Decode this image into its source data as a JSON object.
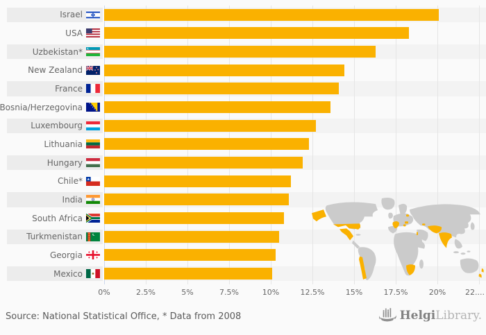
{
  "chart_data": {
    "type": "bar",
    "orientation": "horizontal",
    "categories": [
      "Israel",
      "USA",
      "Uzbekistan*",
      "New Zealand",
      "France",
      "Bosnia/Herzegovina",
      "Luxembourg",
      "Lithuania",
      "Hungary",
      "Chile*",
      "India",
      "South Africa",
      "Turkmenistan",
      "Georgia",
      "Mexico"
    ],
    "values": [
      20.1,
      18.3,
      16.3,
      14.4,
      14.1,
      13.6,
      12.7,
      12.3,
      11.9,
      11.2,
      11.1,
      10.8,
      10.5,
      10.3,
      10.1
    ],
    "flags": [
      "il",
      "us",
      "uz",
      "nz",
      "fr",
      "ba",
      "lu",
      "lt",
      "hu",
      "cl",
      "in",
      "za",
      "tm",
      "ge",
      "mx"
    ],
    "x_tick_labels": [
      "0%",
      "2.5%",
      "5%",
      "7.5%",
      "10%",
      "12.5%",
      "15%",
      "17.5%",
      "20%",
      "22...."
    ],
    "x_tick_values": [
      0,
      2.5,
      5,
      7.5,
      10,
      12.5,
      15,
      17.5,
      20,
      22.5
    ],
    "xlim": [
      0,
      22.9
    ],
    "unit": "%",
    "grid": true,
    "legend": false,
    "bar_color": "#FAB100",
    "map_watermark_highlighted": [
      "Israel",
      "USA",
      "Uzbekistan",
      "New Zealand",
      "France",
      "Bosnia/Herzegovina",
      "Luxembourg",
      "Lithuania",
      "Hungary",
      "Chile",
      "India",
      "South Africa",
      "Turkmenistan",
      "Georgia",
      "Mexico"
    ]
  },
  "colors": {
    "bar": "#FAB100",
    "axis_line": "#CCD6EB",
    "gridline": "#E5E5E5",
    "row_stripe_label": "#ECECEC",
    "row_stripe_plot": "#F3F3F3",
    "label_text": "#666666",
    "map_base": "#CBCBCB",
    "map_highlight": "#FAB100",
    "background": "#FAFAFA"
  },
  "footer": {
    "source_text": "Source: National Statistical Office, * Data from 2008",
    "logo_brand_bold": "Helgi",
    "logo_brand_light": "Library."
  }
}
